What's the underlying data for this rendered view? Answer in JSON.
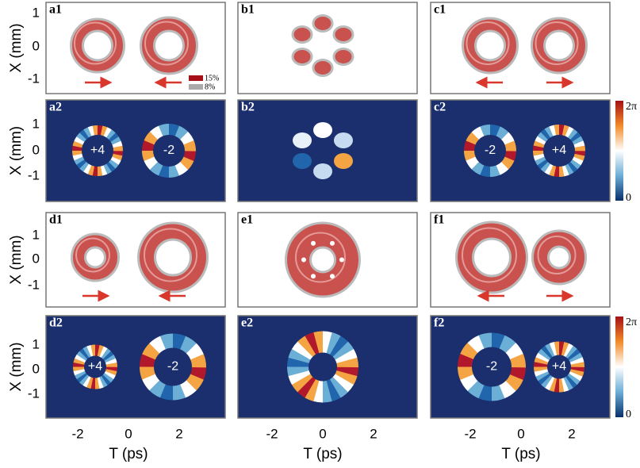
{
  "panels": [
    {
      "label": "a1"
    },
    {
      "label": "b1"
    },
    {
      "label": "c1"
    },
    {
      "label": "a2",
      "charges": [
        "+4",
        "-2"
      ]
    },
    {
      "label": "b2"
    },
    {
      "label": "c2",
      "charges": [
        "-2",
        "+4"
      ]
    },
    {
      "label": "d1"
    },
    {
      "label": "e1"
    },
    {
      "label": "f1"
    },
    {
      "label": "d2",
      "charges": [
        "+4",
        "-2"
      ]
    },
    {
      "label": "e2"
    },
    {
      "label": "f2",
      "charges": [
        "-2",
        "+4"
      ]
    }
  ],
  "legend": [
    "15%",
    "8%"
  ],
  "colorbar": {
    "max": "2π",
    "min": "0"
  },
  "axes": {
    "y_label": "X (mm)",
    "x_label": "T (ps)",
    "y_ticks": [
      "1",
      "0",
      "-1"
    ],
    "x_ticks": [
      "-2",
      "0",
      "2"
    ]
  }
}
